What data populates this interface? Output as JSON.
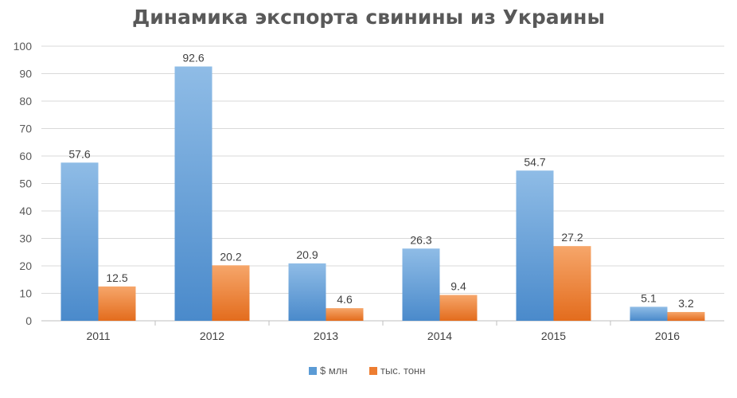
{
  "chart_data": {
    "type": "bar",
    "title": "Динамика экспорта свинины из Украины",
    "categories": [
      "2011",
      "2012",
      "2013",
      "2014",
      "2015",
      "2016"
    ],
    "series": [
      {
        "name": "$ млн",
        "values": [
          57.6,
          92.6,
          20.9,
          26.3,
          54.7,
          5.1
        ],
        "color": "#5b9bd5"
      },
      {
        "name": "тыс. тонн",
        "values": [
          12.5,
          20.2,
          4.6,
          9.4,
          27.2,
          3.2
        ],
        "color": "#ed7d31"
      }
    ],
    "ylim": [
      0,
      100
    ],
    "yticks": [
      0,
      10,
      20,
      30,
      40,
      50,
      60,
      70,
      80,
      90,
      100
    ],
    "grid": true,
    "legend": "bottom",
    "xlabel": "",
    "ylabel": ""
  }
}
